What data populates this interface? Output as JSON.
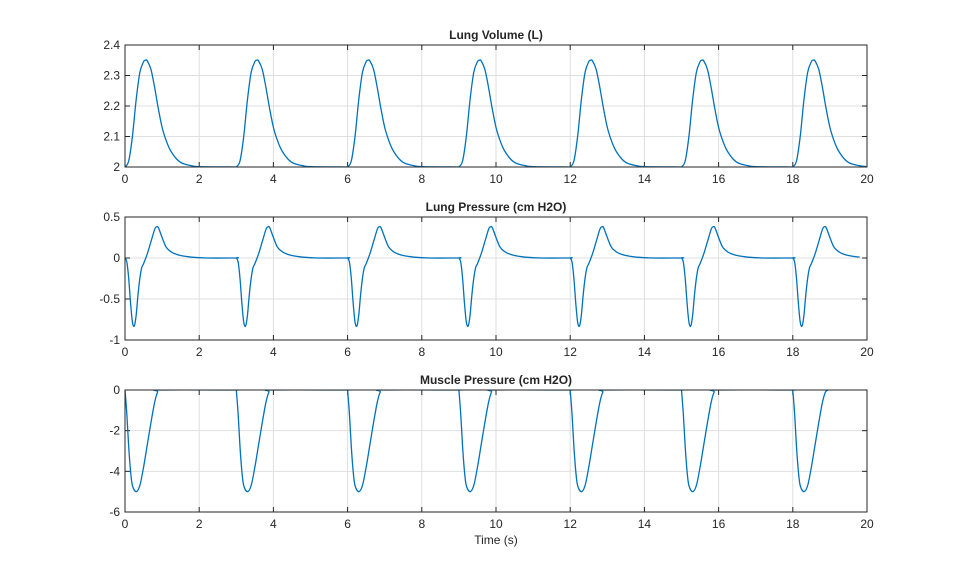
{
  "chart_data": [
    {
      "type": "line",
      "title": "Lung Volume (L)",
      "xlabel": "",
      "ylabel": "",
      "xlim": [
        0,
        20
      ],
      "ylim": [
        2,
        2.4
      ],
      "xticks": [
        0,
        2,
        4,
        6,
        8,
        10,
        12,
        14,
        16,
        18,
        20
      ],
      "yticks": [
        2,
        2.1,
        2.2,
        2.3,
        2.4
      ],
      "ytick_labels": [
        "2",
        "2.1",
        "2.2",
        "2.3",
        "2.4"
      ],
      "grid": true,
      "period": 3,
      "cycle_t": [
        0,
        0.1,
        0.2,
        0.3,
        0.4,
        0.5,
        0.55,
        0.6,
        0.7,
        0.8,
        0.9,
        1.0,
        1.1,
        1.2,
        1.3,
        1.4,
        1.5,
        1.6,
        1.8,
        2.0,
        3.0
      ],
      "cycle_y": [
        2.0,
        2.02,
        2.1,
        2.22,
        2.31,
        2.345,
        2.35,
        2.348,
        2.32,
        2.26,
        2.19,
        2.13,
        2.09,
        2.06,
        2.04,
        2.025,
        2.015,
        2.01,
        2.004,
        2.001,
        2.0
      ]
    },
    {
      "type": "line",
      "title": "Lung Pressure (cm H2O)",
      "xlabel": "",
      "ylabel": "",
      "xlim": [
        0,
        20
      ],
      "ylim": [
        -1,
        0.5
      ],
      "xticks": [
        0,
        2,
        4,
        6,
        8,
        10,
        12,
        14,
        16,
        18,
        20
      ],
      "yticks": [
        -1,
        -0.5,
        0,
        0.5
      ],
      "ytick_labels": [
        "-1",
        "-0.5",
        "0",
        "0.5"
      ],
      "grid": true,
      "period": 3,
      "cycle_t": [
        0,
        0.05,
        0.1,
        0.15,
        0.2,
        0.25,
        0.3,
        0.35,
        0.4,
        0.45,
        0.5,
        0.6,
        0.7,
        0.8,
        0.85,
        0.9,
        1.0,
        1.1,
        1.2,
        1.3,
        1.5,
        1.8,
        2.2,
        3.0
      ],
      "cycle_y": [
        0,
        -0.05,
        -0.25,
        -0.55,
        -0.78,
        -0.83,
        -0.7,
        -0.45,
        -0.25,
        -0.12,
        -0.07,
        0.05,
        0.2,
        0.35,
        0.38,
        0.37,
        0.25,
        0.14,
        0.09,
        0.06,
        0.03,
        0.01,
        0,
        0
      ]
    },
    {
      "type": "line",
      "title": "Muscle Pressure (cm H2O)",
      "xlabel": "Time (s)",
      "ylabel": "",
      "xlim": [
        0,
        20
      ],
      "ylim": [
        -6,
        0
      ],
      "xticks": [
        0,
        2,
        4,
        6,
        8,
        10,
        12,
        14,
        16,
        18,
        20
      ],
      "yticks": [
        -6,
        -4,
        -2,
        0
      ],
      "ytick_labels": [
        "-6",
        "-4",
        "-2",
        "0"
      ],
      "grid": true,
      "period": 3,
      "cycle_t": [
        0,
        0.05,
        0.1,
        0.15,
        0.2,
        0.3,
        0.4,
        0.5,
        0.6,
        0.7,
        0.8,
        0.88,
        0.95,
        3.0
      ],
      "cycle_y": [
        0,
        -1.2,
        -2.8,
        -4.0,
        -4.7,
        -5.0,
        -4.7,
        -3.8,
        -2.7,
        -1.6,
        -0.6,
        -0.1,
        0,
        0
      ]
    }
  ],
  "colors": {
    "line": "#0072bd"
  }
}
